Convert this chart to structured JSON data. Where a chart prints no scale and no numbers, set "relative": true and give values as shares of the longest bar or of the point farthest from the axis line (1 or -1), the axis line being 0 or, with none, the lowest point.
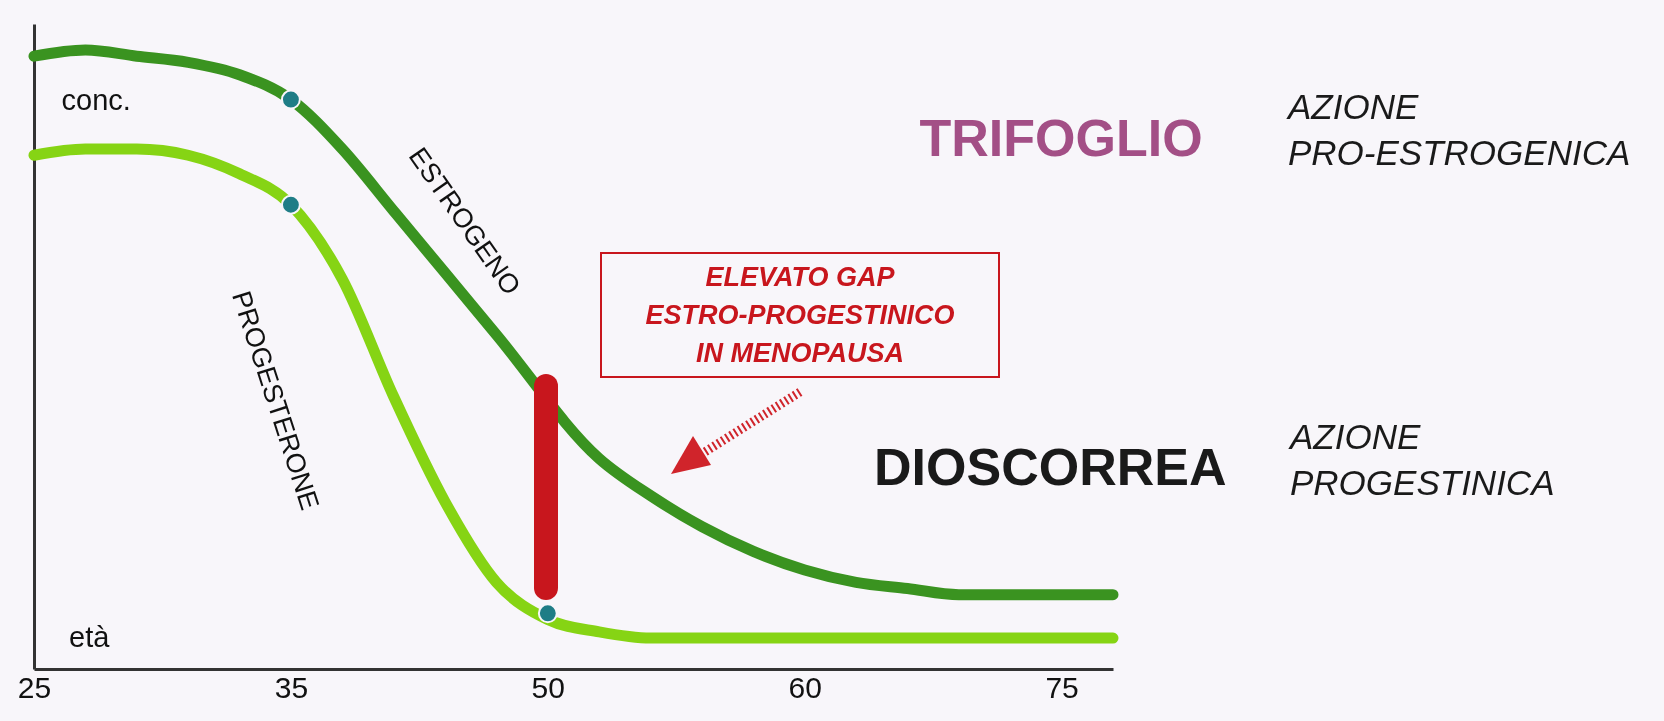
{
  "chart_data": {
    "type": "line",
    "relative": true,
    "xlabel": "età",
    "ylabel": "conc.",
    "categories": [
      "25",
      null,
      null,
      null,
      null,
      "35",
      null,
      null,
      null,
      null,
      "50",
      null,
      null,
      null,
      null,
      "60",
      null,
      null,
      null,
      null,
      "75",
      null
    ],
    "series": [
      {
        "name": "ESTROGENO",
        "color": "#3a9320",
        "values": [
          0.99,
          1.0,
          0.99,
          0.98,
          0.96,
          0.92,
          0.84,
          0.74,
          0.64,
          0.54,
          null,
          0.34,
          0.28,
          0.23,
          0.19,
          0.16,
          0.14,
          0.13,
          0.12,
          0.12,
          0.12,
          0.12
        ]
      },
      {
        "name": "PROGESTERONE",
        "color": "#86d414",
        "values": [
          0.83,
          0.84,
          0.84,
          0.83,
          0.8,
          0.75,
          0.63,
          0.44,
          0.27,
          0.14,
          0.08,
          0.06,
          0.05,
          0.05,
          0.05,
          0.05,
          0.05,
          0.05,
          0.05,
          0.05,
          0.05,
          0.05
        ]
      },
      {
        "type": "scatter",
        "color": "#1f7d86",
        "x": [
          "35",
          "35",
          "50"
        ],
        "values": [
          0.92,
          0.75,
          0.09
        ]
      }
    ],
    "annotations": [
      "ELEVATO GAP\nESTRO-PROGESTINICO\nIN MENOPAUSA",
      "TRIFOGLIO",
      "AZIONE\nPRO-ESTROGENICA",
      "DIOSCORREA",
      "AZIONE\nPROGESTINICA"
    ]
  }
}
